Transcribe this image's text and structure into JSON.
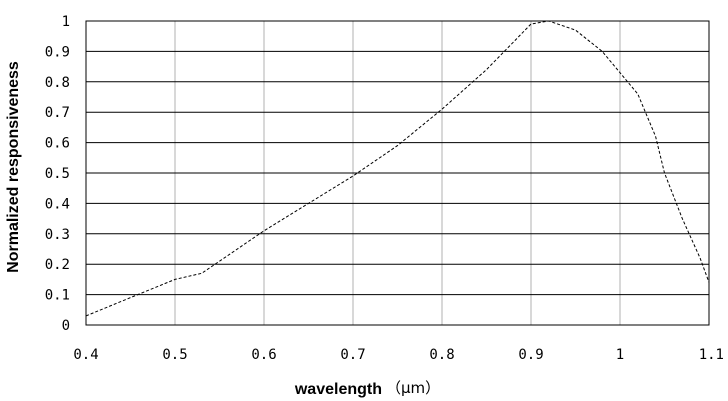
{
  "chart_data": {
    "type": "line",
    "xlabel": "wavelength",
    "xunit": "（μm）",
    "ylabel": "Normalized responsiveness",
    "xlim": [
      0.4,
      1.1
    ],
    "ylim": [
      0,
      1
    ],
    "x_ticks": [
      "0.4",
      "0.5",
      "0.6",
      "0.7",
      "0.8",
      "0.9",
      "1",
      "1.1"
    ],
    "y_ticks": [
      "0",
      "0.1",
      "0.2",
      "0.3",
      "0.4",
      "0.5",
      "0.6",
      "0.7",
      "0.8",
      "0.9",
      "1"
    ],
    "grid": true,
    "line_style": "dashed",
    "series": [
      {
        "x": [
          0.4,
          0.45,
          0.5,
          0.53,
          0.55,
          0.6,
          0.65,
          0.7,
          0.75,
          0.8,
          0.85,
          0.88,
          0.9,
          0.92,
          0.95,
          0.98,
          1.0,
          1.02,
          1.04,
          1.05,
          1.07,
          1.09,
          1.1
        ],
        "y": [
          0.03,
          0.09,
          0.15,
          0.17,
          0.21,
          0.31,
          0.4,
          0.49,
          0.59,
          0.71,
          0.84,
          0.93,
          0.99,
          1.0,
          0.97,
          0.9,
          0.83,
          0.76,
          0.62,
          0.5,
          0.35,
          0.22,
          0.14
        ]
      }
    ],
    "colors": {
      "line": "#000000",
      "grid_major": "#000000",
      "grid_minor": "#b0b0b0"
    }
  }
}
